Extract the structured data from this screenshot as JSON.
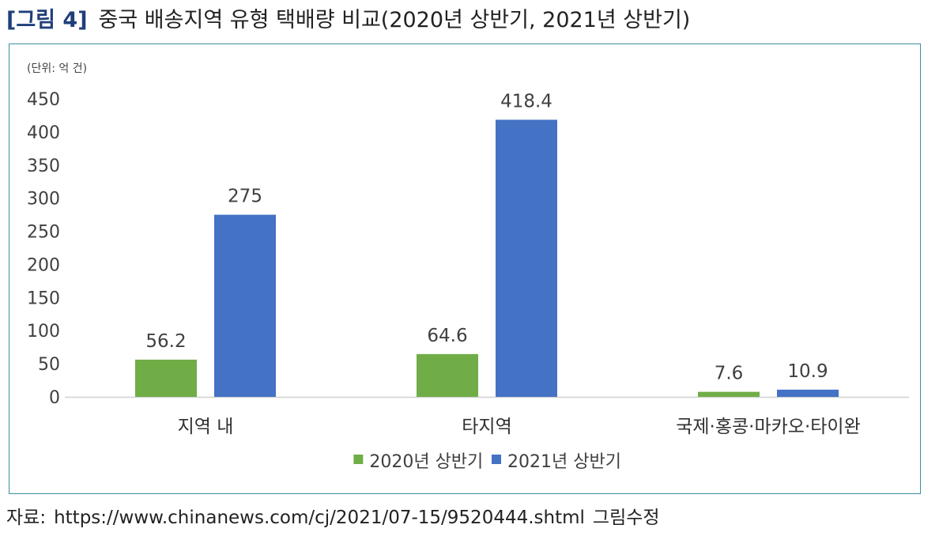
{
  "figure": {
    "number": "[그림 4]",
    "title": "중국 배송지역 유형 택배량 비교(2020년 상반기, 2021년 상반기)"
  },
  "source": {
    "label": "자료:",
    "url": "https://www.chinanews.com/cj/2021/07-15/9520444.shtml",
    "note": "그림수정"
  },
  "chart_data": {
    "type": "bar",
    "unit_label": "(단위: 억 건)",
    "categories": [
      "지역 내",
      "타지역",
      "국제·홍콩·마카오·타이완"
    ],
    "series": [
      {
        "name": "2020년 상반기",
        "color": "#70ad47",
        "values": [
          56.2,
          64.6,
          7.6
        ],
        "labels": [
          "56.2",
          "64.6",
          "7.6"
        ]
      },
      {
        "name": "2021년 상반기",
        "color": "#4472c4",
        "values": [
          275,
          418.4,
          10.9
        ],
        "labels": [
          "275",
          "418.4",
          "10.9"
        ]
      }
    ],
    "ylim": [
      0,
      450
    ],
    "yticks": [
      "0",
      "50",
      "100",
      "150",
      "200",
      "250",
      "300",
      "350",
      "400",
      "450"
    ],
    "grid": false,
    "legend": "bottom"
  }
}
